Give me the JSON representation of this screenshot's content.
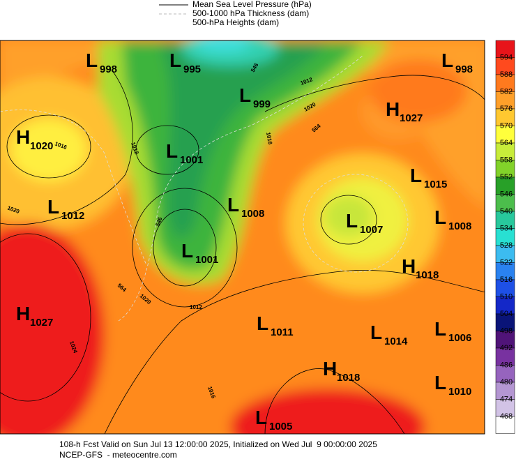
{
  "legend": {
    "items": [
      "Mean Sea Level Pressure (hPa)",
      "500-1000 hPa Thickness (dam)",
      "500-hPa Heights (dam)"
    ]
  },
  "centers": [
    {
      "kind": "L",
      "value": "998"
    },
    {
      "kind": "L",
      "value": "995"
    },
    {
      "kind": "L",
      "value": "999"
    },
    {
      "kind": "H",
      "value": "1027"
    },
    {
      "kind": "L",
      "value": "998"
    },
    {
      "kind": "H",
      "value": "1020"
    },
    {
      "kind": "L",
      "value": "1001"
    },
    {
      "kind": "L",
      "value": "1015"
    },
    {
      "kind": "L",
      "value": "1012"
    },
    {
      "kind": "L",
      "value": "1008"
    },
    {
      "kind": "L",
      "value": "1007"
    },
    {
      "kind": "L",
      "value": "1008"
    },
    {
      "kind": "L",
      "value": "1001"
    },
    {
      "kind": "H",
      "value": "1018"
    },
    {
      "kind": "H",
      "value": "1027"
    },
    {
      "kind": "L",
      "value": "1011"
    },
    {
      "kind": "L",
      "value": "1014"
    },
    {
      "kind": "L",
      "value": "1006"
    },
    {
      "kind": "H",
      "value": "1018"
    },
    {
      "kind": "L",
      "value": "1010"
    },
    {
      "kind": "L",
      "value": "1005"
    }
  ],
  "contour_labels": [
    "1016",
    "1012",
    "1020",
    "1012",
    "1020",
    "1024",
    "1016",
    "1016",
    "1020",
    "1012",
    "564",
    "546",
    "564",
    "546"
  ],
  "colorbar": {
    "labels": [
      594,
      588,
      582,
      576,
      570,
      564,
      558,
      552,
      546,
      540,
      534,
      528,
      522,
      516,
      510,
      504,
      498,
      492,
      486,
      480,
      474,
      468
    ]
  },
  "footer": {
    "line1": "108-h Fcst Valid on Sun Jul 13 12:00:00 2025, Initialized on Wed Jul  9 00:00:00 2025",
    "line2": "NCEP-GFS  - meteocentre.com"
  }
}
